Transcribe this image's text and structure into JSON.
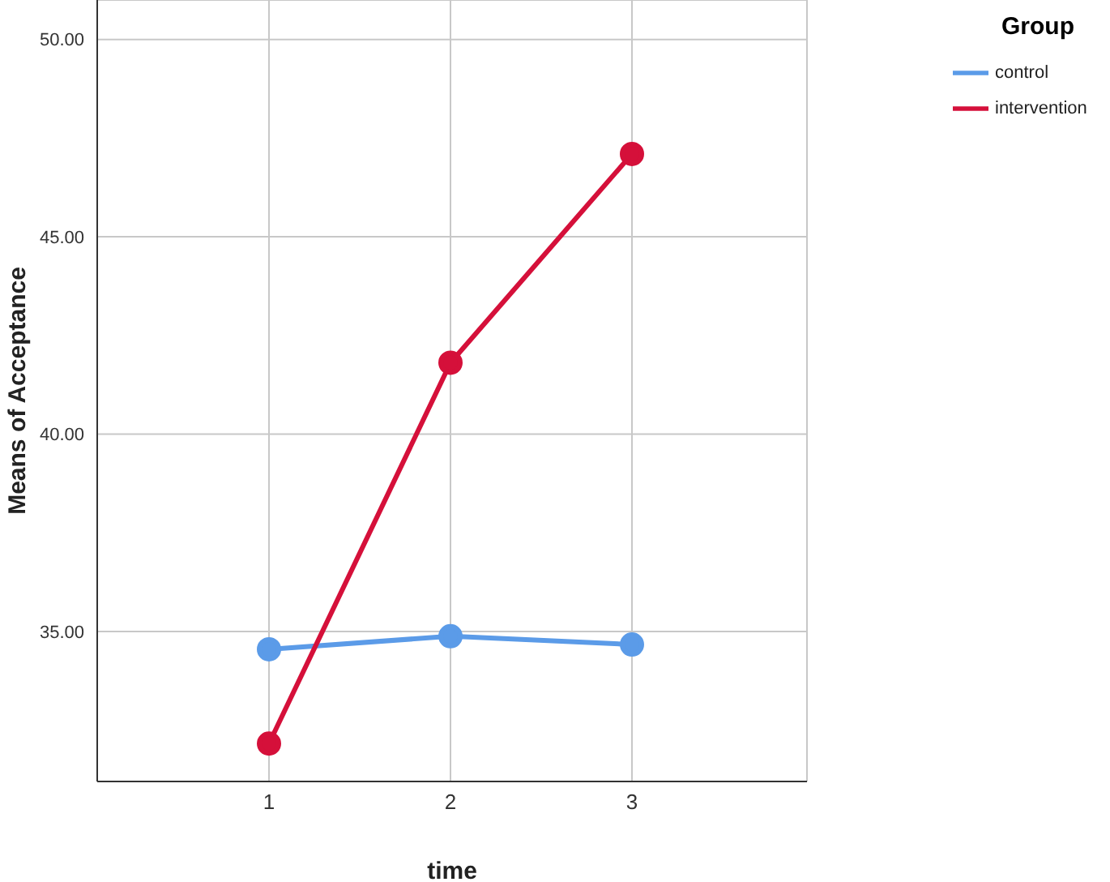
{
  "chart_data": {
    "type": "line",
    "xlabel": "time",
    "ylabel": "Means of Acceptance",
    "legend_title": "Group",
    "categories": [
      "1",
      "2",
      "3"
    ],
    "series": [
      {
        "name": "control",
        "color": "#5b9be8",
        "values": [
          34.55,
          34.88,
          34.67
        ]
      },
      {
        "name": "intervention",
        "color": "#d5103a",
        "values": [
          32.16,
          41.81,
          47.1
        ]
      }
    ],
    "ylim": [
      31.2,
      51
    ],
    "yticks": [
      {
        "value": 35,
        "label": "35.00"
      },
      {
        "value": 40,
        "label": "40.00"
      },
      {
        "value": 45,
        "label": "45.00"
      },
      {
        "value": 50,
        "label": "50.00"
      }
    ],
    "grid": true,
    "legend": "top right",
    "marker": "circle",
    "line_style": "solid"
  }
}
